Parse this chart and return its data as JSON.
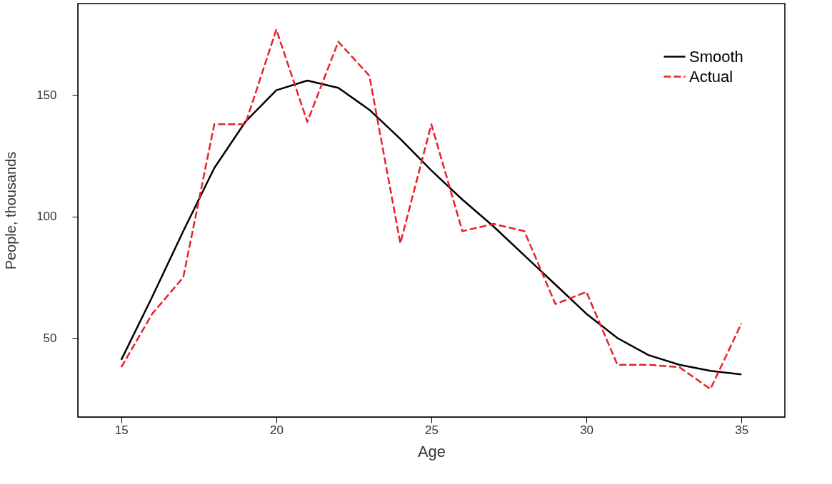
{
  "chart_data": {
    "type": "line",
    "xlabel": "Age",
    "ylabel": "People, thousands",
    "x": [
      15,
      16,
      17,
      18,
      19,
      20,
      21,
      22,
      23,
      24,
      25,
      26,
      27,
      28,
      29,
      30,
      31,
      32,
      33,
      34,
      35
    ],
    "series": [
      {
        "name": "Smooth",
        "color": "#000000",
        "line_style": "solid",
        "values": [
          41,
          67,
          94,
          120,
          139,
          152,
          156,
          153,
          144,
          132,
          119,
          107,
          96,
          84,
          72,
          60,
          50,
          43,
          39,
          36.5,
          35
        ]
      },
      {
        "name": "Actual",
        "color": "#e8202a",
        "line_style": "dashed",
        "values": [
          38,
          60,
          75,
          138,
          138,
          177,
          139,
          172,
          158,
          89,
          138,
          94,
          97,
          94,
          64,
          69,
          39,
          39,
          38,
          29,
          56
        ]
      }
    ],
    "xlim": [
      13.6,
      36.4
    ],
    "ylim": [
      17.5,
      187.7
    ],
    "xticks": [
      15,
      20,
      25,
      30,
      35
    ],
    "yticks": [
      50,
      100,
      150
    ],
    "grid": false,
    "legend": "top right",
    "marker": "none"
  }
}
